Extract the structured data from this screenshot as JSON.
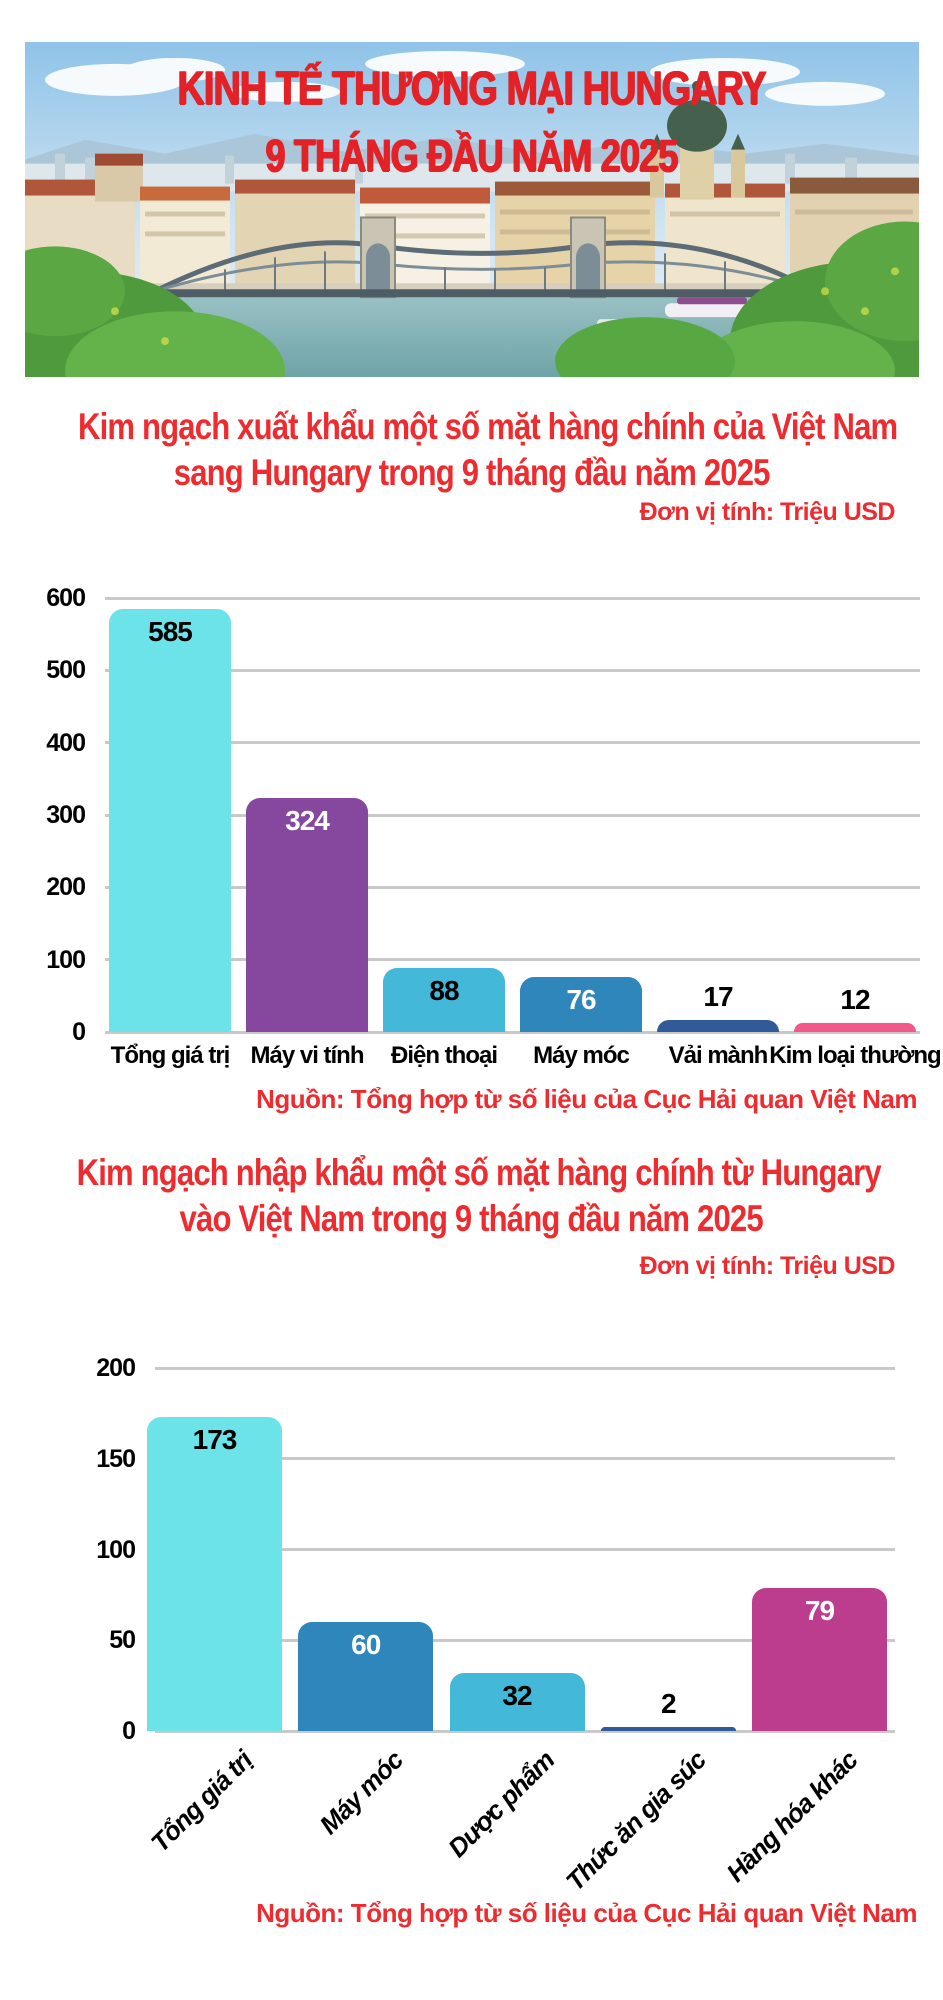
{
  "header": {
    "title_line1": "KINH TẾ THƯƠNG MẠI HUNGARY",
    "title_line2": "9 THÁNG ĐẦU NĂM 2025"
  },
  "colors": {
    "accent_red": "#ee2b2f",
    "header_red": "#e32227",
    "cyan": "#6ce3e8",
    "purple": "#85489e",
    "light_blue": "#44b8d8",
    "medium_blue": "#2f86ba",
    "navy": "#315a99",
    "pink": "#f2598a",
    "magenta": "#bc3d8e",
    "gridline_gray": "#c9c9c9"
  },
  "section_export": {
    "title_line1": "Kim ngạch xuất khẩu một số mặt hàng chính của Việt Nam",
    "title_line2": "sang Hungary trong 9 tháng đầu năm 2025",
    "unit_label": "Đơn vị tính: Triệu USD",
    "source": "Nguồn: Tổng hợp từ số liệu của Cục Hải quan Việt Nam"
  },
  "section_import": {
    "title_line1": "Kim ngạch nhập khẩu một số mặt hàng chính từ Hungary",
    "title_line2": "vào Việt Nam trong 9 tháng đầu năm 2025",
    "unit_label": "Đơn vị tính: Triệu USD",
    "source": "Nguồn: Tổng hợp từ số liệu của Cục Hải quan Việt Nam"
  },
  "chart_data": [
    {
      "type": "bar",
      "title": "Kim ngạch xuất khẩu một số mặt hàng chính của Việt Nam sang Hungary trong 9 tháng đầu năm 2025",
      "unit": "Triệu USD",
      "categories": [
        "Tổng giá trị",
        "Máy vi tính",
        "Điện thoại",
        "Máy móc",
        "Vải mành",
        "Kim loại thường"
      ],
      "values": [
        585,
        324,
        88,
        76,
        17,
        12
      ],
      "bar_colors": [
        "#6ce3e8",
        "#85489e",
        "#44b8d8",
        "#2f86ba",
        "#315a99",
        "#f2598a"
      ],
      "value_label_colors": [
        "#000000",
        "#ffffff",
        "#000000",
        "#ffffff",
        "#000000",
        "#000000"
      ],
      "value_label_positions": [
        "inside",
        "inside",
        "inside",
        "inside",
        "above",
        "above"
      ],
      "ylabel": "",
      "xlabel": "",
      "ylim": [
        0,
        600
      ],
      "ytick_step": 100,
      "grid": true,
      "legend": false,
      "x_label_rotation": 0,
      "source": "Nguồn: Tổng hợp từ số liệu của Cục Hải quan Việt Nam"
    },
    {
      "type": "bar",
      "title": "Kim ngạch nhập khẩu một số mặt hàng chính từ Hungary vào Việt Nam trong 9 tháng đầu năm 2025",
      "unit": "Triệu USD",
      "categories": [
        "Tổng giá trị",
        "Máy móc",
        "Dược phẩm",
        "Thức ăn gia súc",
        "Hàng hóa khác"
      ],
      "values": [
        173,
        60,
        32,
        2,
        79
      ],
      "bar_colors": [
        "#6ce3e8",
        "#2f86ba",
        "#44b8d8",
        "#315a99",
        "#bc3d8e"
      ],
      "value_label_colors": [
        "#000000",
        "#ffffff",
        "#000000",
        "#000000",
        "#ffffff"
      ],
      "value_label_positions": [
        "inside",
        "inside",
        "inside",
        "above",
        "inside"
      ],
      "ylabel": "",
      "xlabel": "",
      "ylim": [
        0,
        200
      ],
      "ytick_step": 50,
      "grid": true,
      "legend": false,
      "x_label_rotation": -45,
      "source": "Nguồn: Tổng hợp từ số liệu của Cục Hải quan Việt Nam"
    }
  ]
}
